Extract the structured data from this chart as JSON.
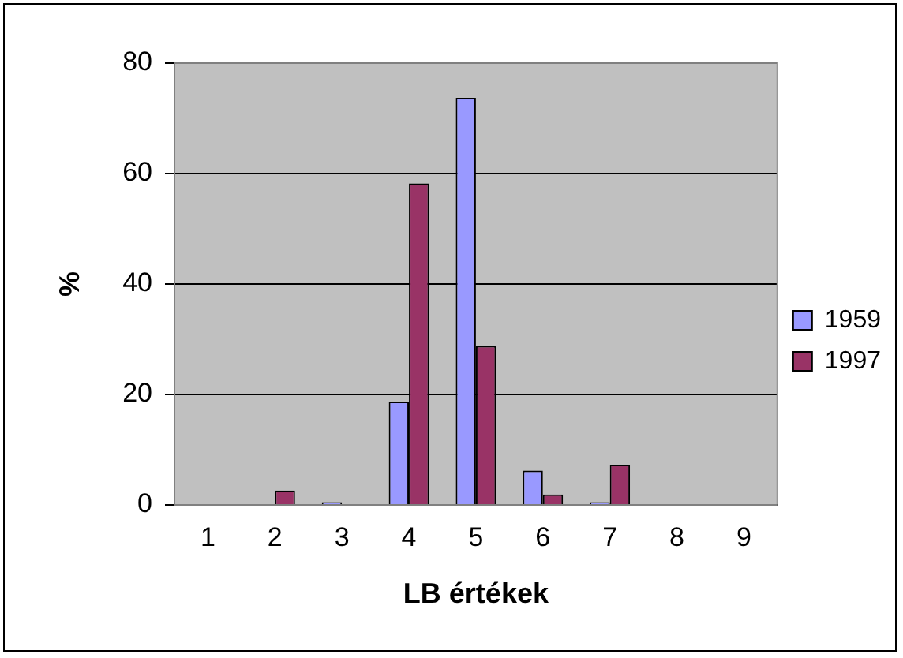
{
  "chart_data": {
    "type": "bar",
    "xlabel": "LB értékek",
    "ylabel": "%",
    "categories": [
      "1",
      "2",
      "3",
      "4",
      "5",
      "6",
      "7",
      "8",
      "9"
    ],
    "series": [
      {
        "name": "1959",
        "color": "#9999ff",
        "values": [
          0,
          0,
          0.5,
          18.7,
          73.7,
          6.2,
          0.5,
          0,
          0
        ]
      },
      {
        "name": "1997",
        "color": "#993366",
        "values": [
          0,
          2.6,
          0,
          58.2,
          28.8,
          1.9,
          7.3,
          0,
          0
        ]
      }
    ],
    "ylim": [
      0,
      80
    ],
    "yticks": [
      0,
      20,
      40,
      60,
      80
    ],
    "grid": "y",
    "legend": "right"
  }
}
